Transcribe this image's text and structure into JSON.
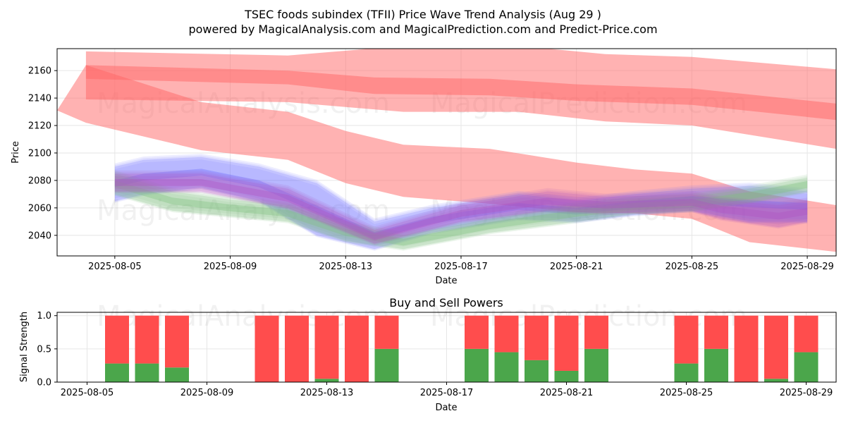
{
  "header": {
    "title": "TSEC foods subindex (TFII) Price Wave Trend Analysis (Aug 29 )",
    "subtitle": "powered by MagicalAnalysis.com and MagicalPrediction.com and Predict-Price.com"
  },
  "watermarks": [
    "MagicalAnalysis.com",
    "MagicalPrediction.com"
  ],
  "colors": {
    "red_band": "#ff6666",
    "blue_band": "#6b6bff",
    "green_band": "#7fbf7f",
    "purple_band": "#b04fc0",
    "buy": "#4ba64b",
    "sell": "#ff4d4d",
    "grid": "#e6e6e6"
  },
  "chart_data": [
    {
      "type": "area",
      "title": "",
      "xlabel": "Date",
      "ylabel": "Price",
      "xlim": [
        "2025-08-03",
        "2025-08-30"
      ],
      "ylim": [
        2025,
        2176
      ],
      "x_ticks": [
        "2025-08-05",
        "2025-08-09",
        "2025-08-13",
        "2025-08-17",
        "2025-08-21",
        "2025-08-25",
        "2025-08-29"
      ],
      "y_ticks": [
        2040,
        2060,
        2080,
        2100,
        2120,
        2140,
        2160
      ],
      "grid": true,
      "series": [
        {
          "name": "red-wave-upper",
          "color": "red",
          "x": [
            "2025-08-04",
            "2025-08-11",
            "2025-08-15",
            "2025-08-19",
            "2025-08-22",
            "2025-08-25",
            "2025-08-30"
          ],
          "upper": [
            2174,
            2171,
            2178,
            2178,
            2172,
            2170,
            2161
          ],
          "lower": [
            2139,
            2137,
            2130,
            2130,
            2123,
            2120,
            2103
          ]
        },
        {
          "name": "red-wave-mid",
          "color": "red",
          "x": [
            "2025-08-04",
            "2025-08-11",
            "2025-08-14",
            "2025-08-18",
            "2025-08-21",
            "2025-08-25",
            "2025-08-30"
          ],
          "upper": [
            2164,
            2160,
            2155,
            2154,
            2150,
            2147,
            2136
          ],
          "lower": [
            2154,
            2150,
            2143,
            2142,
            2138,
            2135,
            2124
          ]
        },
        {
          "name": "red-wave-long",
          "color": "red",
          "x": [
            "2025-08-03",
            "2025-08-04",
            "2025-08-08",
            "2025-08-11",
            "2025-08-13",
            "2025-08-15",
            "2025-08-18",
            "2025-08-21",
            "2025-08-23",
            "2025-08-25",
            "2025-08-27",
            "2025-08-30"
          ],
          "upper": [
            2131,
            2164,
            2137,
            2130,
            2116,
            2106,
            2103,
            2093,
            2088,
            2085,
            2072,
            2062
          ],
          "lower": [
            2131,
            2122,
            2102,
            2095,
            2078,
            2068,
            2063,
            2057,
            2056,
            2052,
            2035,
            2028
          ]
        },
        {
          "name": "blue-wave",
          "color": "blue",
          "x": [
            "2025-08-05",
            "2025-08-06",
            "2025-08-08",
            "2025-08-10",
            "2025-08-12",
            "2025-08-14",
            "2025-08-16",
            "2025-08-19",
            "2025-08-21",
            "2025-08-23",
            "2025-08-25",
            "2025-08-27",
            "2025-08-29"
          ],
          "upper": [
            2090,
            2095,
            2097,
            2090,
            2078,
            2050,
            2060,
            2070,
            2065,
            2070,
            2074,
            2076,
            2072
          ],
          "lower": [
            2065,
            2070,
            2075,
            2065,
            2040,
            2030,
            2042,
            2052,
            2050,
            2055,
            2058,
            2050,
            2050
          ]
        },
        {
          "name": "green-wave",
          "color": "green",
          "x": [
            "2025-08-05",
            "2025-08-07",
            "2025-08-09",
            "2025-08-11",
            "2025-08-13",
            "2025-08-15",
            "2025-08-18",
            "2025-08-21",
            "2025-08-23",
            "2025-08-25",
            "2025-08-27",
            "2025-08-29"
          ],
          "upper": [
            2085,
            2072,
            2066,
            2062,
            2048,
            2040,
            2052,
            2062,
            2066,
            2068,
            2074,
            2082
          ],
          "lower": [
            2070,
            2058,
            2054,
            2050,
            2036,
            2030,
            2042,
            2050,
            2056,
            2058,
            2064,
            2072
          ]
        },
        {
          "name": "purple-wave",
          "color": "purple",
          "x": [
            "2025-08-05",
            "2025-08-08",
            "2025-08-11",
            "2025-08-14",
            "2025-08-17",
            "2025-08-20",
            "2025-08-22",
            "2025-08-25",
            "2025-08-26",
            "2025-08-28",
            "2025-08-29"
          ],
          "upper": [
            2085,
            2085,
            2074,
            2044,
            2062,
            2072,
            2068,
            2070,
            2066,
            2062,
            2065
          ],
          "lower": [
            2072,
            2072,
            2060,
            2034,
            2050,
            2058,
            2056,
            2058,
            2052,
            2046,
            2050
          ]
        }
      ]
    },
    {
      "type": "bar",
      "title": "Buy and Sell Powers",
      "xlabel": "Date",
      "ylabel": "Signal Strength",
      "xlim": [
        "2025-08-04",
        "2025-08-30"
      ],
      "ylim": [
        0,
        1.05
      ],
      "x_ticks": [
        "2025-08-05",
        "2025-08-09",
        "2025-08-13",
        "2025-08-17",
        "2025-08-21",
        "2025-08-25",
        "2025-08-29"
      ],
      "y_ticks": [
        0.0,
        0.5,
        1.0
      ],
      "grid": true,
      "categories": [
        "2025-08-06",
        "2025-08-07",
        "2025-08-08",
        "2025-08-11",
        "2025-08-12",
        "2025-08-13",
        "2025-08-14",
        "2025-08-15",
        "2025-08-18",
        "2025-08-19",
        "2025-08-20",
        "2025-08-21",
        "2025-08-22",
        "2025-08-25",
        "2025-08-26",
        "2025-08-27",
        "2025-08-28",
        "2025-08-29"
      ],
      "series": [
        {
          "name": "Buy",
          "values": [
            0.28,
            0.28,
            0.22,
            0.0,
            0.0,
            0.05,
            0.0,
            0.5,
            0.5,
            0.45,
            0.33,
            0.17,
            0.5,
            0.28,
            0.5,
            0.0,
            0.05,
            0.45
          ]
        },
        {
          "name": "Sell",
          "values": [
            0.72,
            0.72,
            0.78,
            1.0,
            1.0,
            0.95,
            1.0,
            0.5,
            0.5,
            0.55,
            0.67,
            0.83,
            0.5,
            0.72,
            0.5,
            1.0,
            0.95,
            0.55
          ]
        }
      ]
    }
  ]
}
